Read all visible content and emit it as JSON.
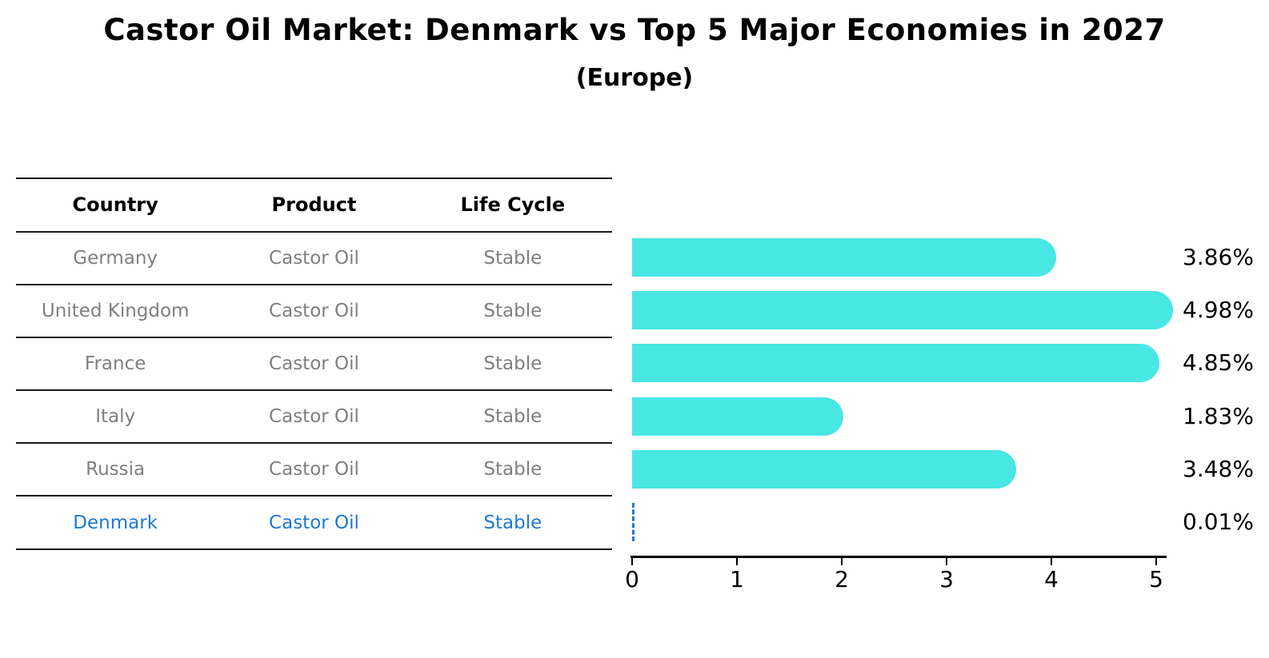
{
  "title": "Castor Oil Market: Denmark vs Top 5 Major Economies in 2027",
  "subtitle": "(Europe)",
  "table": {
    "headers": [
      "Country",
      "Product",
      "Life Cycle"
    ],
    "rows": [
      {
        "country": "Germany",
        "product": "Castor Oil",
        "life_cycle": "Stable",
        "highlight": false
      },
      {
        "country": "United Kingdom",
        "product": "Castor Oil",
        "life_cycle": "Stable",
        "highlight": false
      },
      {
        "country": "France",
        "product": "Castor Oil",
        "life_cycle": "Stable",
        "highlight": false
      },
      {
        "country": "Italy",
        "product": "Castor Oil",
        "life_cycle": "Stable",
        "highlight": false
      },
      {
        "country": "Russia",
        "product": "Castor Oil",
        "life_cycle": "Stable",
        "highlight": false
      },
      {
        "country": "Denmark",
        "product": "Castor Oil",
        "life_cycle": "Stable",
        "highlight": true
      }
    ]
  },
  "chart_data": {
    "type": "bar",
    "orientation": "horizontal",
    "title": "Castor Oil Market: Denmark vs Top 5 Major Economies in 2027",
    "subtitle": "(Europe)",
    "categories": [
      "Germany",
      "United Kingdom",
      "France",
      "Italy",
      "Russia",
      "Denmark"
    ],
    "values": [
      3.86,
      4.98,
      4.85,
      1.83,
      3.48,
      0.01
    ],
    "value_labels": [
      "3.86%",
      "4.98%",
      "4.85%",
      "1.83%",
      "3.48%",
      "0.01%"
    ],
    "xlabel": "",
    "ylabel": "",
    "xlim": [
      0,
      5.1
    ],
    "xticks": [
      0,
      1,
      2,
      3,
      4,
      5
    ],
    "grid": false,
    "legend": false,
    "highlight_category": "Denmark"
  },
  "colors": {
    "bar": "#49e7e3",
    "highlight": "#1f78d2",
    "row_text": "#7f7f7f",
    "header_text": "#000000",
    "axis": "#000000"
  }
}
